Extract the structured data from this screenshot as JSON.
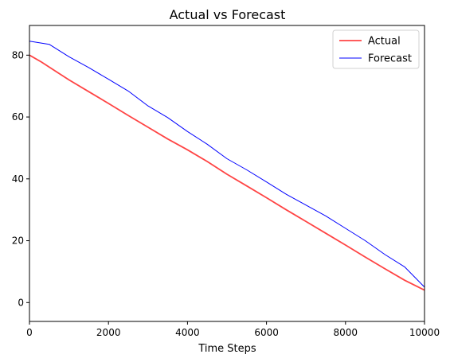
{
  "chart_data": {
    "type": "line",
    "title": "Actual vs Forecast",
    "xlabel": "Time Steps",
    "ylabel": "",
    "xlim": [
      0,
      10000
    ],
    "ylim": [
      -6.1,
      89.6
    ],
    "x_ticks": [
      0,
      2000,
      4000,
      6000,
      8000,
      10000
    ],
    "y_ticks": [
      0,
      20,
      40,
      60,
      80
    ],
    "grid": false,
    "legend_position": "top-right",
    "series": [
      {
        "name": "Actual",
        "color": "#ff4444",
        "x": [
          0,
          300,
          700,
          1000,
          1500,
          2000,
          2500,
          3000,
          3500,
          4000,
          4500,
          5000,
          5500,
          6000,
          6500,
          7000,
          7500,
          8000,
          8500,
          9000,
          9500,
          10000
        ],
        "y": [
          80.0,
          77.8,
          74.5,
          72.0,
          68.2,
          64.4,
          60.5,
          56.7,
          52.9,
          49.4,
          45.6,
          41.5,
          37.7,
          33.9,
          30.0,
          26.2,
          22.4,
          18.6,
          14.7,
          10.9,
          7.2,
          4.0
        ]
      },
      {
        "name": "Forecast",
        "color": "#0000ff",
        "x": [
          0,
          500,
          1000,
          1500,
          2000,
          2500,
          3000,
          3500,
          4000,
          4500,
          5000,
          5500,
          6000,
          6500,
          7000,
          7500,
          8000,
          8500,
          9000,
          9500,
          10000
        ],
        "y": [
          84.5,
          83.5,
          79.5,
          76.0,
          72.2,
          68.4,
          63.6,
          59.8,
          55.3,
          51.2,
          46.5,
          42.9,
          39.0,
          35.0,
          31.5,
          28.0,
          24.0,
          20.0,
          15.5,
          11.5,
          5.0
        ]
      }
    ]
  }
}
